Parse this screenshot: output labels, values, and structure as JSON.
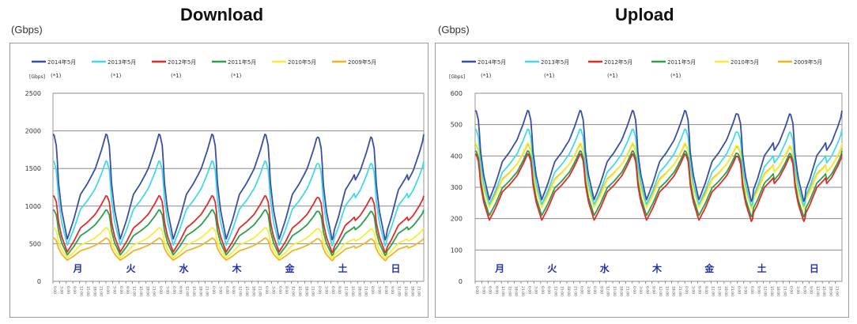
{
  "chart_data": [
    {
      "type": "line",
      "title": "Download",
      "ylabel": "(Gbps)",
      "axis_unit": "[Gbps]",
      "ylim": [
        0,
        2500
      ],
      "yticks": [
        "0",
        "500",
        "1000",
        "1500",
        "2000",
        "2500"
      ],
      "day_labels": [
        "月",
        "火",
        "水",
        "木",
        "金",
        "土",
        "日"
      ],
      "grid": true,
      "legend": "top",
      "series": [
        {
          "name": "2014年5月",
          "note": "(*1)",
          "color": "#3a4fa3",
          "night_low": 560,
          "peak": 1980
        },
        {
          "name": "2013年5月",
          "note": "(*1)",
          "color": "#43d9e8",
          "night_low": 480,
          "peak": 1620
        },
        {
          "name": "2012年5月",
          "note": "(*1)",
          "color": "#e02b2b",
          "night_low": 390,
          "peak": 1150
        },
        {
          "name": "2011年5月",
          "note": "(*1)",
          "color": "#2aa04a",
          "night_low": 350,
          "peak": 960
        },
        {
          "name": "2010年5月",
          "note": "",
          "color": "#f4ee3a",
          "night_low": 310,
          "peak": 720
        },
        {
          "name": "2009年5月",
          "note": "",
          "color": "#f0b523",
          "night_low": 280,
          "peak": 580
        }
      ]
    },
    {
      "type": "line",
      "title": "Upload",
      "ylabel": "(Gbps)",
      "axis_unit": "[Gbps]",
      "ylim": [
        0,
        600
      ],
      "yticks": [
        "0",
        "100",
        "200",
        "300",
        "400",
        "500",
        "600"
      ],
      "day_labels": [
        "月",
        "火",
        "水",
        "木",
        "金",
        "土",
        "日"
      ],
      "grid": true,
      "legend": "top",
      "series": [
        {
          "name": "2014年5月",
          "note": "(*1)",
          "color": "#3a4fa3",
          "night_low": 260,
          "peak": 550
        },
        {
          "name": "2013年5月",
          "note": "(*1)",
          "color": "#43d9e8",
          "night_low": 245,
          "peak": 490
        },
        {
          "name": "2012年5月",
          "note": "(*1)",
          "color": "#e02b2b",
          "night_low": 195,
          "peak": 410
        },
        {
          "name": "2011年5月",
          "note": "(*1)",
          "color": "#2aa04a",
          "night_low": 210,
          "peak": 420
        },
        {
          "name": "2010年5月",
          "note": "",
          "color": "#f4ee3a",
          "night_low": 235,
          "peak": 445
        },
        {
          "name": "2009年5月",
          "note": "",
          "color": "#f0b523",
          "night_low": 245,
          "peak": 440
        }
      ]
    }
  ]
}
